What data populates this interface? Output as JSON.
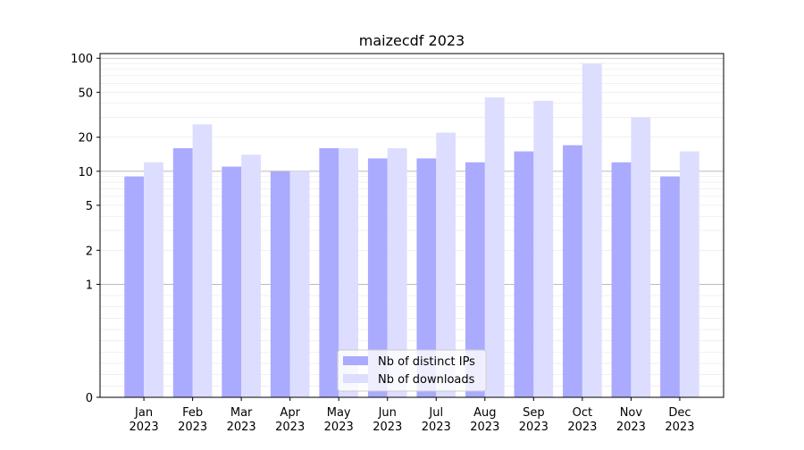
{
  "chart_data": {
    "type": "bar",
    "title": "maizecdf 2023",
    "xlabel": "",
    "ylabel": "",
    "yscale": "symlog",
    "ylim": [
      0,
      110
    ],
    "yticks": [
      0,
      1,
      2,
      5,
      10,
      20,
      50,
      100
    ],
    "ytick_labels": [
      "0",
      "1",
      "2",
      "5",
      "10",
      "20",
      "50",
      "100"
    ],
    "grid": "horizontal",
    "legend_position": "bottom-center",
    "categories": [
      [
        "Jan",
        "2023"
      ],
      [
        "Feb",
        "2023"
      ],
      [
        "Mar",
        "2023"
      ],
      [
        "Apr",
        "2023"
      ],
      [
        "May",
        "2023"
      ],
      [
        "Jun",
        "2023"
      ],
      [
        "Jul",
        "2023"
      ],
      [
        "Aug",
        "2023"
      ],
      [
        "Sep",
        "2023"
      ],
      [
        "Oct",
        "2023"
      ],
      [
        "Nov",
        "2023"
      ],
      [
        "Dec",
        "2023"
      ]
    ],
    "series": [
      {
        "name": "Nb of distinct IPs",
        "color": "#aaaaff",
        "values": [
          9,
          16,
          11,
          10,
          16,
          13,
          13,
          12,
          15,
          17,
          12,
          9
        ]
      },
      {
        "name": "Nb of downloads",
        "color": "#ddddff",
        "values": [
          12,
          26,
          14,
          10,
          16,
          16,
          22,
          45,
          42,
          90,
          30,
          15
        ]
      }
    ]
  }
}
